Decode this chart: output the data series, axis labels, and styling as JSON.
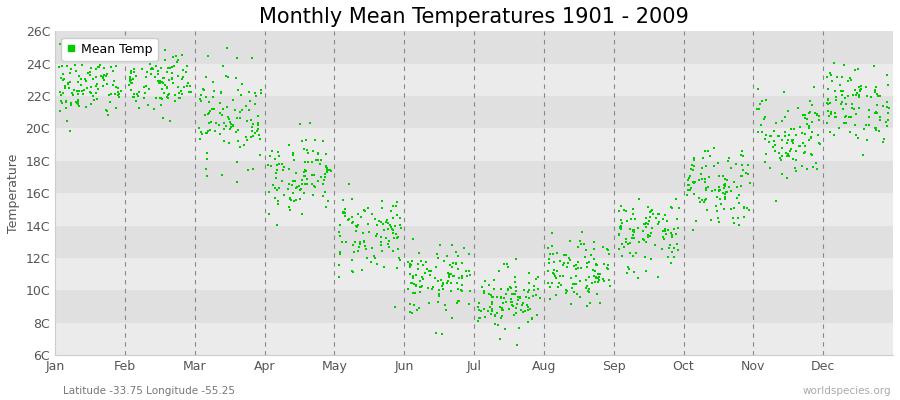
{
  "title": "Monthly Mean Temperatures 1901 - 2009",
  "ylabel": "Temperature",
  "subtitle": "Latitude -33.75 Longitude -55.25",
  "watermark": "worldspecies.org",
  "legend_label": "Mean Temp",
  "dot_color": "#00cc00",
  "bg_color": "#f5f5f5",
  "band_colors": [
    "#ebebeb",
    "#e0e0e0"
  ],
  "ylim": [
    6,
    26
  ],
  "yticks": [
    6,
    8,
    10,
    12,
    14,
    16,
    18,
    20,
    22,
    24,
    26
  ],
  "ytick_labels": [
    "6C",
    "8C",
    "10C",
    "12C",
    "14C",
    "16C",
    "18C",
    "20C",
    "22C",
    "24C",
    "26C"
  ],
  "months": [
    "Jan",
    "Feb",
    "Mar",
    "Apr",
    "May",
    "Jun",
    "Jul",
    "Aug",
    "Sep",
    "Oct",
    "Nov",
    "Dec"
  ],
  "monthly_means": [
    22.5,
    22.8,
    20.8,
    17.2,
    13.5,
    10.5,
    9.5,
    11.0,
    13.5,
    16.5,
    19.5,
    21.5
  ],
  "monthly_stds": [
    1.0,
    1.1,
    1.5,
    1.2,
    1.3,
    1.1,
    1.0,
    1.0,
    1.2,
    1.3,
    1.4,
    1.2
  ],
  "n_years": 109,
  "title_fontsize": 15,
  "label_fontsize": 9,
  "tick_fontsize": 9
}
